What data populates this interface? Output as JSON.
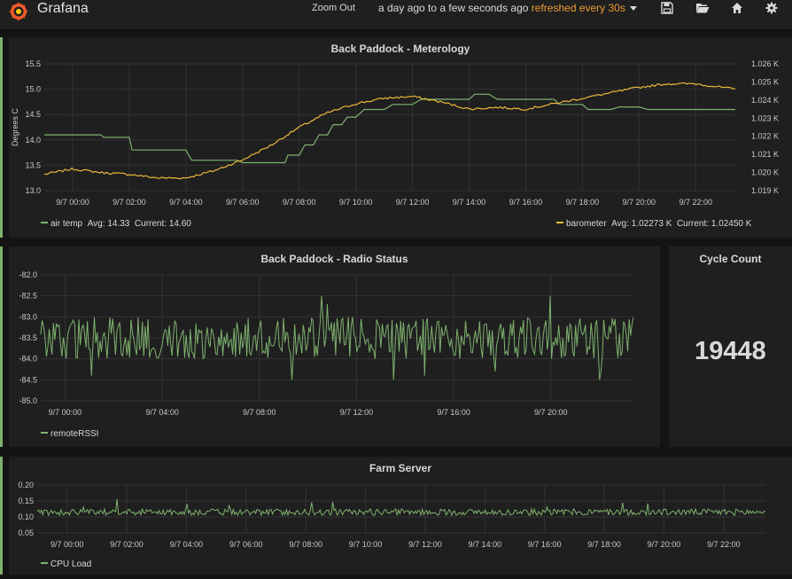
{
  "app": {
    "brand": "Grafana"
  },
  "header": {
    "zoom_out": "Zoom Out",
    "time_range": "a day ago to a few seconds ago",
    "refresh": "refreshed every 30s"
  },
  "colors": {
    "green": "#7eb26d",
    "orange": "#eab839",
    "grid": "#2e2e2e",
    "panel": "#1f1f20",
    "row_marker": "#7eb26d"
  },
  "icons": [
    "grafana-logo-icon",
    "save-icon",
    "folder-open-icon",
    "home-icon",
    "gear-icon"
  ],
  "panels": {
    "meteorology": {
      "title": "Back Paddock - Meterology",
      "y_left_label": "Degrees C",
      "legend": [
        {
          "name": "air temp",
          "avg_label": "Avg:",
          "avg": "14.33",
          "current_label": "Current:",
          "current": "14.60"
        },
        {
          "name": "barometer",
          "avg_label": "Avg:",
          "avg": "1.02273 K",
          "current_label": "Current:",
          "current": "1.02450 K"
        }
      ]
    },
    "radio": {
      "title": "Back Paddock - Radio Status",
      "legend": [
        {
          "name": "remoteRSSI"
        }
      ]
    },
    "cycle_count": {
      "title": "Cycle Count",
      "value": "19448"
    },
    "farm_server": {
      "title": "Farm Server",
      "legend": [
        {
          "name": "CPU Load"
        }
      ]
    }
  },
  "chart_data": [
    {
      "type": "line",
      "title": "Back Paddock - Meterology",
      "ylabel": "Degrees C",
      "x_ticks": [
        "9/7 00:00",
        "9/7 02:00",
        "9/7 04:00",
        "9/7 06:00",
        "9/7 08:00",
        "9/7 10:00",
        "9/7 12:00",
        "9/7 14:00",
        "9/7 16:00",
        "9/7 18:00",
        "9/7 20:00",
        "9/7 22:00"
      ],
      "y_ticks": [
        "13.0",
        "13.5",
        "14.0",
        "14.5",
        "15.0",
        "15.5"
      ],
      "y2_ticks": [
        "1.019 K",
        "1.020 K",
        "1.021 K",
        "1.022 K",
        "1.023 K",
        "1.024 K",
        "1.025 K",
        "1.026 K"
      ],
      "ylim": [
        13.0,
        15.5
      ],
      "y2lim": [
        1.019,
        1.026
      ],
      "x_range_hours": [
        -1,
        23.4
      ],
      "series": [
        {
          "name": "air temp",
          "axis": "left",
          "x": [
            -1,
            1,
            1.1,
            2,
            2.1,
            4,
            4.2,
            5.8,
            6,
            7.5,
            7.6,
            8,
            8.2,
            8.5,
            8.7,
            9,
            9.2,
            9.5,
            9.7,
            10,
            10.3,
            11,
            11.3,
            12,
            12.3,
            14,
            14.2,
            14.7,
            15,
            17,
            17.2,
            18,
            18.2,
            19,
            19.3,
            20,
            20.3,
            21,
            21.3,
            23.4
          ],
          "values": [
            14.1,
            14.1,
            14.05,
            14.05,
            13.8,
            13.8,
            13.6,
            13.6,
            13.55,
            13.55,
            13.7,
            13.7,
            13.9,
            13.9,
            14.1,
            14.1,
            14.3,
            14.3,
            14.45,
            14.45,
            14.6,
            14.6,
            14.7,
            14.7,
            14.8,
            14.8,
            14.9,
            14.9,
            14.8,
            14.8,
            14.7,
            14.7,
            14.6,
            14.6,
            14.65,
            14.65,
            14.6,
            14.6,
            14.6,
            14.6
          ]
        },
        {
          "name": "barometer",
          "axis": "right",
          "x": [
            -1,
            0,
            1,
            2,
            3,
            4,
            5,
            6,
            7,
            8,
            9,
            10,
            11,
            12,
            13,
            14,
            15,
            16,
            17,
            18,
            19,
            20,
            21,
            22,
            23.4
          ],
          "values": [
            1.0199,
            1.0202,
            1.02,
            1.0199,
            1.0197,
            1.0197,
            1.0201,
            1.0207,
            1.0215,
            1.0225,
            1.0233,
            1.0238,
            1.0241,
            1.0242,
            1.0239,
            1.0235,
            1.0236,
            1.0235,
            1.0238,
            1.0241,
            1.0244,
            1.0247,
            1.0249,
            1.0249,
            1.0246
          ]
        }
      ]
    },
    {
      "type": "line",
      "title": "Back Paddock - Radio Status",
      "x_ticks": [
        "9/7 00:00",
        "9/7 04:00",
        "9/7 08:00",
        "9/7 12:00",
        "9/7 16:00",
        "9/7 20:00"
      ],
      "y_ticks": [
        "-82.0",
        "-82.5",
        "-83.0",
        "-83.5",
        "-84.0",
        "-84.5",
        "-85.0"
      ],
      "ylim": [
        -85.0,
        -82.0
      ],
      "x_range_hours": [
        -1,
        23.4
      ],
      "series": [
        {
          "name": "remoteRSSI",
          "range": [
            -84.0,
            -83.0
          ],
          "mean": -83.5,
          "spikes_up": [
            -82.6,
            -82.5,
            -82.7,
            -82.5
          ],
          "spikes_down": [
            -84.4,
            -84.5,
            -84.3,
            -84.5
          ]
        }
      ]
    },
    {
      "type": "line",
      "title": "Farm Server",
      "x_ticks": [
        "9/7 00:00",
        "9/7 02:00",
        "9/7 04:00",
        "9/7 06:00",
        "9/7 08:00",
        "9/7 10:00",
        "9/7 12:00",
        "9/7 14:00",
        "9/7 16:00",
        "9/7 18:00",
        "9/7 20:00",
        "9/7 22:00"
      ],
      "y_ticks": [
        "0.05",
        "0.10",
        "0.15",
        "0.20"
      ],
      "ylim": [
        0.05,
        0.2
      ],
      "x_range_hours": [
        -1,
        23.4
      ],
      "series": [
        {
          "name": "CPU Load",
          "mean": 0.115,
          "range": [
            0.1,
            0.13
          ]
        }
      ]
    }
  ]
}
